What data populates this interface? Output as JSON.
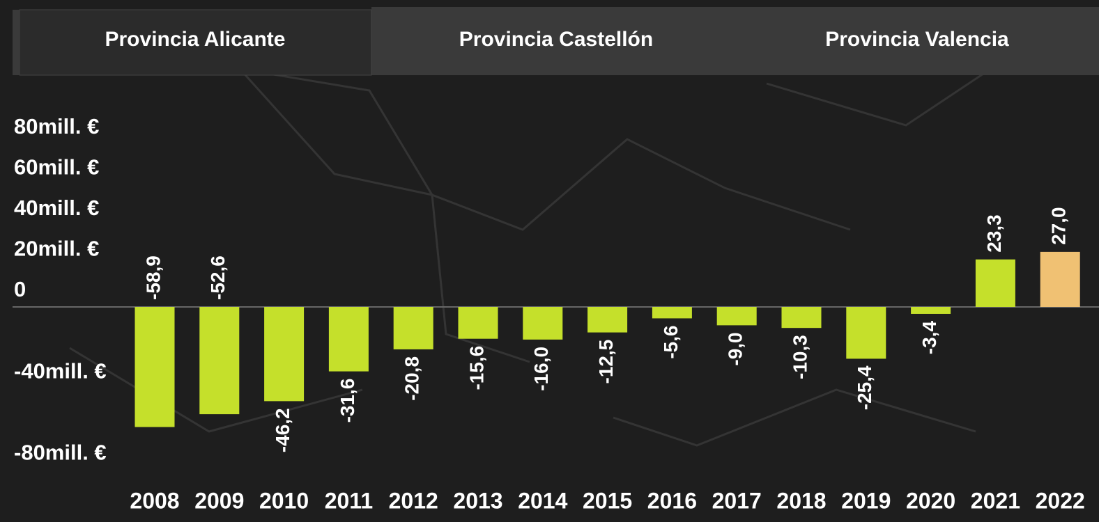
{
  "tabs": [
    "Provincia Alicante",
    "Provincia Castellón",
    "Provincia Valencia"
  ],
  "active_tab": 0,
  "chart_data": {
    "type": "bar",
    "categories": [
      "2008",
      "2009",
      "2010",
      "2011",
      "2012",
      "2013",
      "2014",
      "2015",
      "2016",
      "2017",
      "2018",
      "2019",
      "2020",
      "2021",
      "2022"
    ],
    "values": [
      -58.9,
      -52.6,
      -46.2,
      -31.6,
      -20.8,
      -15.6,
      -16.0,
      -12.5,
      -5.6,
      -9.0,
      -10.3,
      -25.4,
      -3.4,
      23.3,
      27.0
    ],
    "value_labels": [
      "-58,9",
      "-52,6",
      "-46,2",
      "-31,6",
      "-20,8",
      "-15,6",
      "-16,0",
      "-12,5",
      "-5,6",
      "-9,0",
      "-10,3",
      "-25,4",
      "-3,4",
      "23,3",
      "27,0"
    ],
    "colors": [
      "#c5e02b",
      "#c5e02b",
      "#c5e02b",
      "#c5e02b",
      "#c5e02b",
      "#c5e02b",
      "#c5e02b",
      "#c5e02b",
      "#c5e02b",
      "#c5e02b",
      "#c5e02b",
      "#c5e02b",
      "#c5e02b",
      "#c5e02b",
      "#f0c173"
    ],
    "ylim": [
      -80,
      80
    ],
    "yticks": [
      {
        "value": 80,
        "label": "80mill. €"
      },
      {
        "value": 60,
        "label": "60mill. €"
      },
      {
        "value": 40,
        "label": "40mill. €"
      },
      {
        "value": 20,
        "label": "20mill. €"
      },
      0,
      {
        "value": -40,
        "label": "-40mill. €"
      },
      {
        "value": -80,
        "label": "-80mill. €"
      }
    ]
  }
}
